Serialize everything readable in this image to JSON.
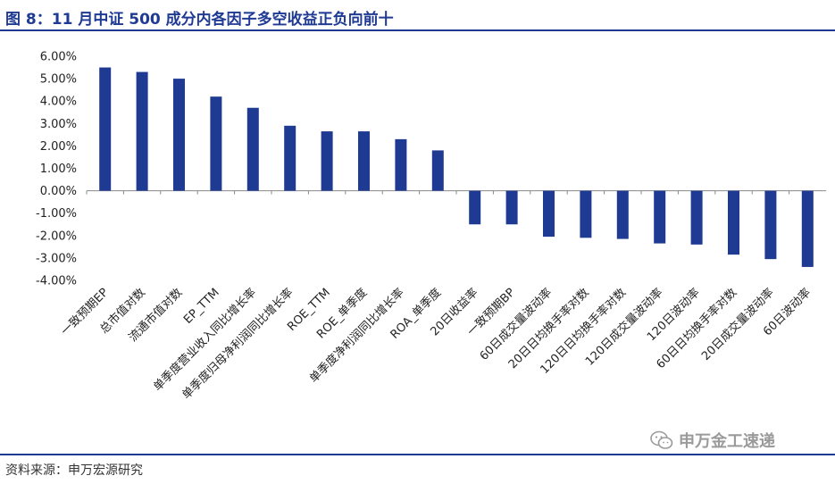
{
  "figure": {
    "title": "图 8：11 月中证 500 成分内各因子多空收益正负向前十",
    "source": "资料来源：申万宏源研究",
    "watermark": "申万金工速递"
  },
  "colors": {
    "bar": "#1f3a93",
    "accent": "#1f3a93",
    "axis": "#888888"
  },
  "chart_data": {
    "type": "bar",
    "title": "",
    "xlabel": "",
    "ylabel": "",
    "ylim": [
      -4,
      6
    ],
    "yticks": [
      6,
      5,
      4,
      3,
      2,
      1,
      0,
      -1,
      -2,
      -3,
      -4
    ],
    "ytick_labels": [
      "6.00%",
      "5.00%",
      "4.00%",
      "3.00%",
      "2.00%",
      "1.00%",
      "0.00%",
      "-1.00%",
      "-2.00%",
      "-3.00%",
      "-4.00%"
    ],
    "unit": "%",
    "grid": false,
    "categories": [
      "一致预期EP",
      "总市值对数",
      "流通市值对数",
      "EP_TTM",
      "单季度营业收入同比增长率",
      "单季度归母净利润同比增长率",
      "ROE_TTM",
      "ROE_单季度",
      "单季度净利润同比增长率",
      "ROA_单季度",
      "20日收益率",
      "一致预期BP",
      "60日成交量波动率",
      "20日日均换手率对数",
      "120日日均换手率对数",
      "120日成交量波动率",
      "120日波动率",
      "60日日均换手率对数",
      "20日成交量波动率",
      "60日波动率"
    ],
    "values": [
      5.5,
      5.3,
      5.0,
      4.2,
      3.7,
      2.9,
      2.65,
      2.65,
      2.3,
      1.8,
      -1.5,
      -1.5,
      -2.05,
      -2.1,
      -2.15,
      -2.35,
      -2.4,
      -2.85,
      -3.05,
      -3.4
    ]
  }
}
